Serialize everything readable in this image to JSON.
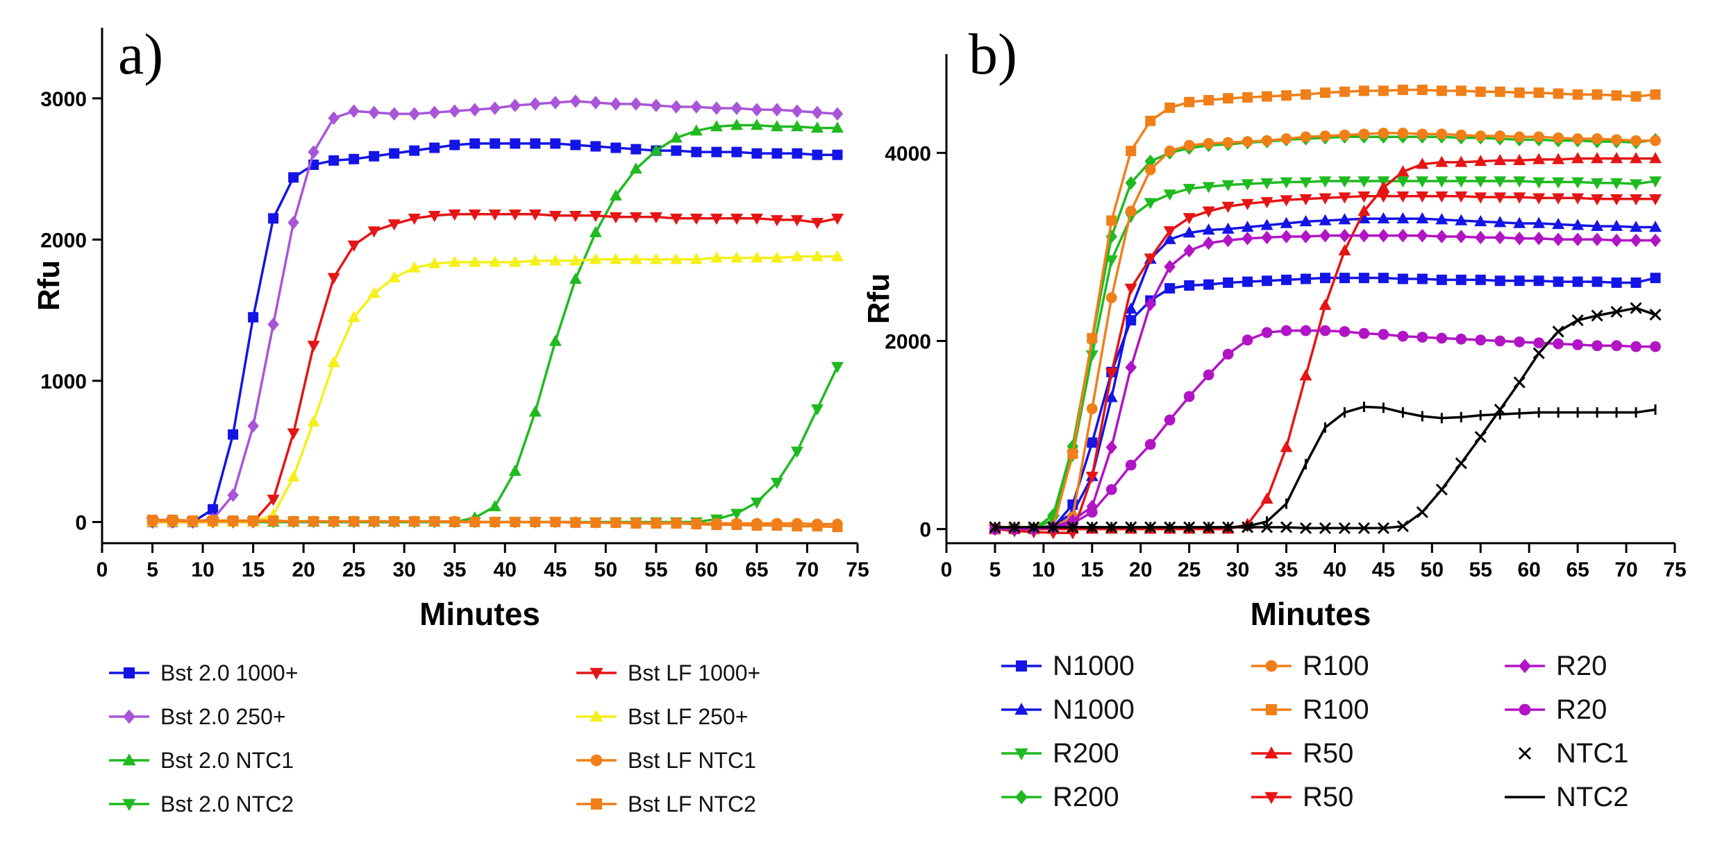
{
  "chart_data": [
    {
      "panel_label": "a)",
      "type": "line",
      "xlabel": "Minutes",
      "ylabel": "Rfu",
      "xlim": [
        0,
        75
      ],
      "ylim": [
        -150,
        3500
      ],
      "xticks": [
        0,
        5,
        10,
        15,
        20,
        25,
        30,
        35,
        40,
        45,
        50,
        55,
        60,
        65,
        70,
        75
      ],
      "yticks": [
        0,
        1000,
        2000,
        3000
      ],
      "x": [
        5,
        7,
        9,
        11,
        13,
        15,
        17,
        19,
        21,
        23,
        25,
        27,
        29,
        31,
        33,
        35,
        37,
        39,
        41,
        43,
        45,
        47,
        49,
        51,
        53,
        55,
        57,
        59,
        61,
        63,
        65,
        67,
        69,
        71,
        73
      ],
      "legend": "below",
      "series": [
        {
          "name": "Bst 2.0 1000+",
          "color": "#1414e6",
          "marker": "square",
          "values": [
            0,
            0,
            0,
            90,
            620,
            1450,
            2150,
            2440,
            2530,
            2560,
            2570,
            2590,
            2610,
            2630,
            2650,
            2670,
            2680,
            2680,
            2680,
            2680,
            2680,
            2670,
            2660,
            2650,
            2640,
            2630,
            2630,
            2620,
            2620,
            2620,
            2610,
            2610,
            2610,
            2600,
            2600
          ]
        },
        {
          "name": "Bst 2.0 250+",
          "color": "#a855d8",
          "marker": "diamond",
          "values": [
            0,
            0,
            0,
            20,
            190,
            680,
            1400,
            2120,
            2620,
            2860,
            2910,
            2900,
            2890,
            2890,
            2900,
            2910,
            2920,
            2930,
            2950,
            2960,
            2970,
            2980,
            2970,
            2960,
            2960,
            2950,
            2940,
            2940,
            2930,
            2930,
            2920,
            2920,
            2910,
            2900,
            2890
          ]
        },
        {
          "name": "Bst 2.0 NTC1",
          "color": "#1fba1f",
          "marker": "triangle-up",
          "values": [
            0,
            0,
            0,
            0,
            0,
            0,
            0,
            0,
            0,
            0,
            0,
            0,
            0,
            0,
            0,
            0,
            30,
            110,
            360,
            780,
            1280,
            1720,
            2050,
            2310,
            2500,
            2630,
            2720,
            2770,
            2800,
            2810,
            2810,
            2800,
            2800,
            2790,
            2790
          ]
        },
        {
          "name": "Bst 2.0 NTC2",
          "color": "#1fba1f",
          "marker": "triangle-down",
          "values": [
            0,
            0,
            0,
            0,
            0,
            0,
            0,
            0,
            0,
            0,
            0,
            0,
            0,
            0,
            0,
            0,
            0,
            0,
            0,
            0,
            0,
            0,
            0,
            0,
            0,
            0,
            0,
            0,
            20,
            60,
            140,
            280,
            500,
            800,
            1100
          ]
        },
        {
          "name": "Bst LF 1000+",
          "color": "#e61414",
          "marker": "triangle-down",
          "values": [
            0,
            0,
            0,
            0,
            0,
            0,
            160,
            630,
            1250,
            1730,
            1960,
            2060,
            2110,
            2150,
            2170,
            2180,
            2180,
            2180,
            2180,
            2180,
            2170,
            2170,
            2170,
            2160,
            2160,
            2160,
            2150,
            2150,
            2150,
            2150,
            2150,
            2140,
            2140,
            2120,
            2150
          ]
        },
        {
          "name": "Bst LF 250+",
          "color": "#f5f019",
          "marker": "triangle-up",
          "values": [
            0,
            0,
            0,
            0,
            0,
            0,
            50,
            320,
            710,
            1130,
            1450,
            1620,
            1730,
            1800,
            1830,
            1840,
            1840,
            1840,
            1840,
            1850,
            1850,
            1850,
            1860,
            1860,
            1860,
            1860,
            1860,
            1860,
            1870,
            1870,
            1870,
            1870,
            1880,
            1880,
            1880
          ]
        },
        {
          "name": "Bst LF NTC1",
          "color": "#f07f19",
          "marker": "circle",
          "values": [
            5,
            5,
            5,
            5,
            5,
            5,
            5,
            5,
            5,
            5,
            5,
            5,
            5,
            5,
            5,
            5,
            0,
            0,
            0,
            0,
            0,
            0,
            -5,
            -5,
            -5,
            -5,
            -5,
            -10,
            -10,
            -10,
            -10,
            -10,
            -10,
            -15,
            -15
          ]
        },
        {
          "name": "Bst LF NTC2",
          "color": "#f07f19",
          "marker": "square",
          "values": [
            15,
            15,
            10,
            10,
            10,
            10,
            10,
            5,
            5,
            5,
            5,
            5,
            5,
            5,
            5,
            0,
            0,
            0,
            0,
            0,
            0,
            -5,
            -5,
            -5,
            -10,
            -10,
            -10,
            -15,
            -20,
            -20,
            -25,
            -25,
            -30,
            -30,
            -35
          ]
        }
      ]
    },
    {
      "panel_label": "b)",
      "type": "line",
      "xlabel": "Minutes",
      "ylabel": "Rfu",
      "xlim": [
        0,
        75
      ],
      "ylim": [
        -150,
        5050
      ],
      "xticks": [
        0,
        5,
        10,
        15,
        20,
        25,
        30,
        35,
        40,
        45,
        50,
        55,
        60,
        65,
        70,
        75
      ],
      "yticks": [
        0,
        2000,
        4000
      ],
      "x": [
        5,
        7,
        9,
        11,
        13,
        15,
        17,
        19,
        21,
        23,
        25,
        27,
        29,
        31,
        33,
        35,
        37,
        39,
        41,
        43,
        45,
        47,
        49,
        51,
        53,
        55,
        57,
        59,
        61,
        63,
        65,
        67,
        69,
        71,
        73
      ],
      "legend": "below",
      "series": [
        {
          "name": "N1000",
          "color": "#1414e6",
          "marker": "square",
          "values": [
            0,
            0,
            0,
            20,
            260,
            920,
            1670,
            2220,
            2430,
            2560,
            2590,
            2600,
            2620,
            2630,
            2640,
            2650,
            2660,
            2670,
            2670,
            2670,
            2670,
            2660,
            2660,
            2650,
            2650,
            2650,
            2640,
            2640,
            2640,
            2630,
            2630,
            2630,
            2620,
            2620,
            2670
          ]
        },
        {
          "name": "N1000",
          "color": "#1414e6",
          "marker": "triangle-up",
          "values": [
            0,
            0,
            0,
            40,
            170,
            560,
            1400,
            2340,
            2870,
            3080,
            3150,
            3180,
            3190,
            3210,
            3230,
            3250,
            3270,
            3280,
            3290,
            3300,
            3300,
            3300,
            3300,
            3290,
            3280,
            3270,
            3260,
            3250,
            3250,
            3240,
            3230,
            3220,
            3220,
            3210,
            3210
          ]
        },
        {
          "name": "R200",
          "color": "#1fba1f",
          "marker": "triangle-down",
          "values": [
            0,
            0,
            0,
            100,
            780,
            1850,
            2860,
            3320,
            3470,
            3560,
            3620,
            3640,
            3660,
            3670,
            3680,
            3690,
            3690,
            3700,
            3700,
            3700,
            3700,
            3700,
            3700,
            3700,
            3700,
            3700,
            3700,
            3700,
            3690,
            3690,
            3690,
            3680,
            3680,
            3670,
            3700
          ]
        },
        {
          "name": "R200",
          "color": "#1fba1f",
          "marker": "diamond",
          "values": [
            0,
            0,
            0,
            150,
            880,
            2000,
            3110,
            3680,
            3910,
            4000,
            4050,
            4080,
            4090,
            4110,
            4120,
            4140,
            4150,
            4160,
            4170,
            4170,
            4170,
            4170,
            4170,
            4170,
            4160,
            4160,
            4150,
            4140,
            4140,
            4130,
            4130,
            4120,
            4120,
            4110,
            4140
          ]
        },
        {
          "name": "R100",
          "color": "#f07f19",
          "marker": "circle",
          "values": [
            0,
            0,
            0,
            20,
            130,
            1280,
            2460,
            3380,
            3820,
            4020,
            4080,
            4100,
            4110,
            4120,
            4130,
            4150,
            4170,
            4180,
            4190,
            4200,
            4210,
            4210,
            4200,
            4200,
            4190,
            4180,
            4180,
            4170,
            4170,
            4160,
            4150,
            4150,
            4140,
            4130,
            4130
          ]
        },
        {
          "name": "R100",
          "color": "#f07f19",
          "marker": "square",
          "values": [
            0,
            0,
            0,
            20,
            800,
            2030,
            3280,
            4020,
            4340,
            4480,
            4540,
            4560,
            4580,
            4590,
            4600,
            4610,
            4620,
            4640,
            4650,
            4660,
            4660,
            4670,
            4670,
            4660,
            4660,
            4650,
            4650,
            4640,
            4640,
            4630,
            4620,
            4620,
            4610,
            4600,
            4620
          ]
        },
        {
          "name": "R50",
          "color": "#e61414",
          "marker": "triangle-up",
          "values": [
            0,
            0,
            0,
            0,
            0,
            0,
            0,
            0,
            0,
            0,
            0,
            0,
            0,
            50,
            320,
            870,
            1630,
            2380,
            2960,
            3380,
            3630,
            3800,
            3880,
            3900,
            3900,
            3910,
            3920,
            3920,
            3930,
            3930,
            3940,
            3940,
            3940,
            3940,
            3940
          ]
        },
        {
          "name": "R50",
          "color": "#e61414",
          "marker": "triangle-down",
          "values": [
            0,
            -20,
            -30,
            -40,
            -40,
            560,
            1660,
            2560,
            2880,
            3170,
            3310,
            3380,
            3430,
            3460,
            3480,
            3500,
            3510,
            3520,
            3530,
            3540,
            3540,
            3540,
            3540,
            3540,
            3540,
            3530,
            3530,
            3530,
            3520,
            3520,
            3520,
            3510,
            3510,
            3510,
            3510
          ]
        },
        {
          "name": "R20",
          "color": "#b114c4",
          "marker": "diamond",
          "values": [
            0,
            0,
            0,
            20,
            90,
            240,
            870,
            1720,
            2390,
            2790,
            2960,
            3040,
            3070,
            3090,
            3100,
            3110,
            3110,
            3120,
            3120,
            3120,
            3120,
            3120,
            3120,
            3110,
            3110,
            3100,
            3100,
            3090,
            3090,
            3080,
            3080,
            3080,
            3070,
            3070,
            3070
          ]
        },
        {
          "name": "R20",
          "color": "#b114c4",
          "marker": "circle",
          "values": [
            0,
            0,
            0,
            20,
            60,
            180,
            420,
            680,
            900,
            1160,
            1410,
            1640,
            1860,
            2010,
            2090,
            2110,
            2110,
            2110,
            2100,
            2080,
            2070,
            2050,
            2040,
            2030,
            2020,
            2010,
            2000,
            1990,
            1980,
            1970,
            1960,
            1950,
            1950,
            1940,
            1940
          ]
        },
        {
          "name": "NTC1",
          "color": "#000000",
          "marker": "x",
          "values": [
            20,
            20,
            20,
            20,
            20,
            20,
            20,
            20,
            20,
            20,
            20,
            20,
            20,
            20,
            20,
            20,
            10,
            10,
            10,
            10,
            10,
            30,
            180,
            420,
            700,
            980,
            1270,
            1560,
            1870,
            2100,
            2220,
            2270,
            2310,
            2350,
            2280
          ]
        },
        {
          "name": "NTC2",
          "color": "#000000",
          "marker": "plus",
          "values": [
            20,
            20,
            20,
            20,
            20,
            20,
            20,
            20,
            20,
            20,
            20,
            20,
            20,
            30,
            80,
            270,
            690,
            1080,
            1240,
            1300,
            1290,
            1240,
            1200,
            1180,
            1190,
            1210,
            1220,
            1230,
            1240,
            1240,
            1240,
            1240,
            1240,
            1240,
            1270
          ]
        }
      ]
    }
  ],
  "legends": {
    "a": [
      [
        "Bst 2.0 1000+",
        "Bst 2.0 250+",
        "Bst 2.0 NTC1",
        "Bst 2.0 NTC2"
      ],
      [
        "Bst LF 1000+",
        "Bst LF 250+",
        "Bst LF NTC1",
        "Bst LF NTC2"
      ]
    ],
    "b": [
      [
        "N1000",
        "N1000",
        "R200",
        "R200"
      ],
      [
        "R100",
        "R100",
        "R50",
        "R50"
      ],
      [
        "R20",
        "R20",
        "NTC1",
        "NTC2"
      ]
    ],
    "b_legend_markers": {
      "NTC1": "x",
      "NTC2": "line"
    }
  }
}
